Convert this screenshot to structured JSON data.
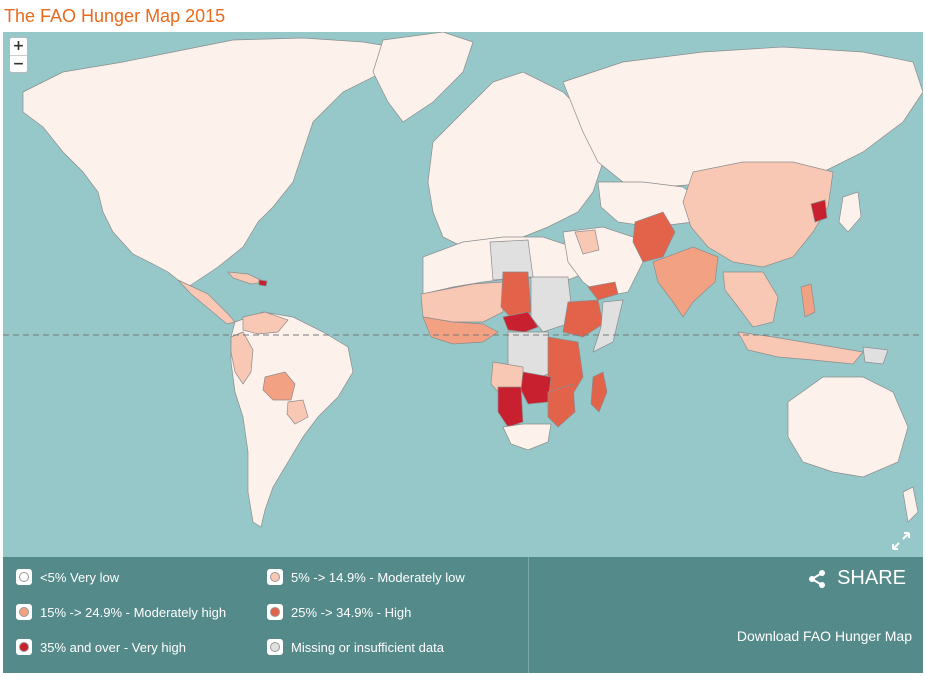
{
  "title": "The FAO Hunger Map 2015",
  "map": {
    "zoom_in": "+",
    "zoom_out": "−",
    "colors": {
      "ocean": "#96c8c9",
      "very_low": "#fdf1ec",
      "moderately_low": "#f8c8b4",
      "moderately_high": "#f3a183",
      "high": "#e3634a",
      "very_high": "#c8202f",
      "missing": "#e0e0e0",
      "border": "#8c8c8c"
    }
  },
  "legend": {
    "items": [
      {
        "label": "<5% Very low",
        "color": "#ffffff"
      },
      {
        "label": "5% -> 14.9% - Moderately low",
        "color": "#f8c8b4"
      },
      {
        "label": "15% -> 24.9% - Moderately high",
        "color": "#f3a183"
      },
      {
        "label": "25% -> 34.9% - High",
        "color": "#e3634a"
      },
      {
        "label": "35% and over - Very high",
        "color": "#c8202f"
      },
      {
        "label": "Missing or insufficient data",
        "color": "#e0e0e0"
      }
    ]
  },
  "share": {
    "label": "SHARE",
    "icon": "share-icon"
  },
  "download": {
    "label": "Download FAO Hunger Map"
  }
}
